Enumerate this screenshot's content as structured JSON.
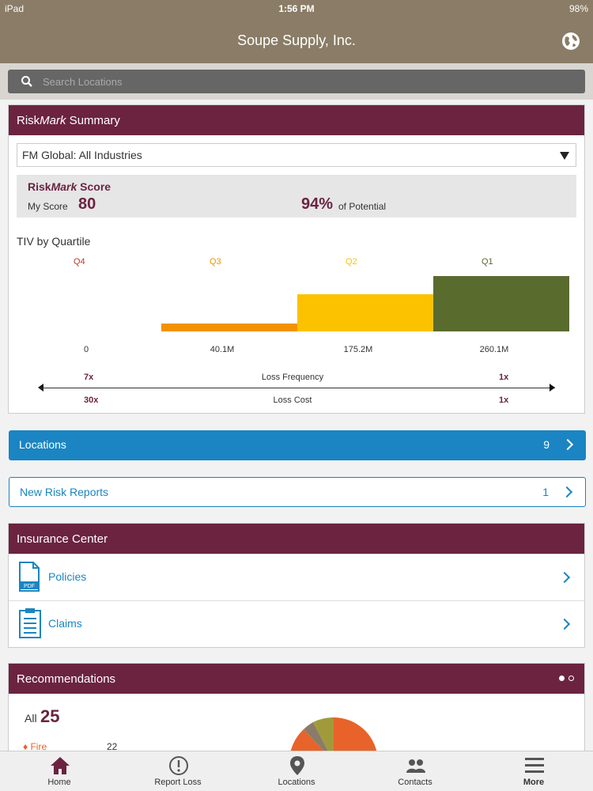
{
  "status_bar": {
    "device": "iPad",
    "time": "1:56 PM",
    "battery": "98%"
  },
  "nav": {
    "title": "Soupe Supply, Inc.",
    "globe_icon": "globe-icon"
  },
  "search": {
    "placeholder": "Search Locations"
  },
  "summary": {
    "title_a": "Risk",
    "title_b": "Mark",
    "title_c": " Summary",
    "dropdown_value": "FM Global: All Industries",
    "score_label_a": "Risk",
    "score_label_b": "Mark",
    "score_label_c": " Score",
    "my_score_label": "My Score",
    "my_score": "80",
    "potential_pct": "94%",
    "potential_label": "of Potential",
    "tiv_title": "TIV by Quartile"
  },
  "chart_data": {
    "type": "bar",
    "categories": [
      "Q4",
      "Q3",
      "Q2",
      "Q1"
    ],
    "boundaries": [
      "0",
      "40.1M",
      "175.2M",
      "260.1M"
    ],
    "relative_heights": [
      0,
      0.14,
      0.67,
      1.0
    ],
    "colors": [
      "#c0392b",
      "#f39200",
      "#fcc200",
      "#5a6b2e"
    ],
    "loss_frequency": {
      "label": "Loss Frequency",
      "left": "7x",
      "right": "1x"
    },
    "loss_cost": {
      "label": "Loss Cost",
      "left": "30x",
      "right": "1x"
    }
  },
  "locations": {
    "label": "Locations",
    "count": "9"
  },
  "new_risk_reports": {
    "label": "New Risk Reports",
    "count": "1"
  },
  "insurance": {
    "title": "Insurance Center",
    "items": [
      {
        "label": "Policies",
        "icon": "pdf-document-icon"
      },
      {
        "label": "Claims",
        "icon": "clipboard-icon"
      }
    ]
  },
  "recommendations": {
    "title": "Recommendations",
    "all_label": "All",
    "all_count": "25",
    "fire_label": "Fire",
    "fire_count": "22"
  },
  "tabs": [
    {
      "label": "Home",
      "icon": "home-icon"
    },
    {
      "label": "Report Loss",
      "icon": "alert-circle-icon"
    },
    {
      "label": "Locations",
      "icon": "map-pin-icon"
    },
    {
      "label": "Contacts",
      "icon": "contacts-icon"
    },
    {
      "label": "More",
      "icon": "menu-icon"
    }
  ]
}
